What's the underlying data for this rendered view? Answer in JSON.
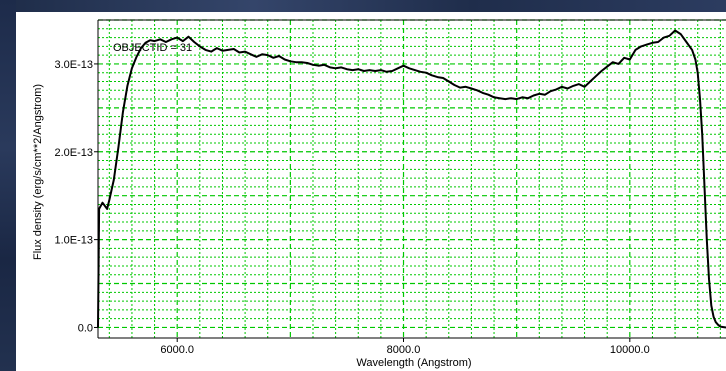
{
  "chart_data": {
    "type": "line",
    "title": "",
    "annotation": "OBJECTID = 31",
    "xlabel": "Wavelength (Angstrom)",
    "ylabel": "Flux density (erg/s/cm**2/Angstrom)",
    "xlim": [
      5300,
      10850
    ],
    "ylim": [
      -1.2e-14,
      3.5e-13
    ],
    "x_ticks": [
      6000,
      8000,
      10000
    ],
    "x_tick_labels": [
      "6000.0",
      "8000.0",
      "10000.0"
    ],
    "y_ticks": [
      0,
      1e-13,
      2e-13,
      3e-13
    ],
    "y_tick_labels": [
      "0.0",
      "1.0E-13",
      "2.0E-13",
      "3.0E-13"
    ],
    "grid": true,
    "grid_color": "#00c800",
    "line_color": "#000000",
    "series": [
      {
        "x": [
          5300,
          5310,
          5340,
          5380,
          5400,
          5440,
          5480,
          5520,
          5560,
          5600,
          5640,
          5680,
          5720,
          5760,
          5800,
          5850,
          5900,
          5950,
          6000,
          6050,
          6100,
          6150,
          6200,
          6250,
          6300,
          6350,
          6400,
          6450,
          6500,
          6550,
          6600,
          6650,
          6700,
          6750,
          6800,
          6850,
          6900,
          6950,
          7000,
          7050,
          7100,
          7150,
          7200,
          7250,
          7300,
          7350,
          7400,
          7450,
          7500,
          7550,
          7600,
          7650,
          7700,
          7750,
          7800,
          7850,
          7900,
          7950,
          8000,
          8050,
          8100,
          8150,
          8200,
          8250,
          8300,
          8350,
          8400,
          8450,
          8500,
          8550,
          8600,
          8650,
          8700,
          8750,
          8800,
          8850,
          8900,
          8950,
          9000,
          9050,
          9100,
          9150,
          9200,
          9250,
          9300,
          9350,
          9400,
          9450,
          9500,
          9550,
          9600,
          9650,
          9700,
          9750,
          9800,
          9850,
          9900,
          9950,
          10000,
          10050,
          10100,
          10150,
          10200,
          10250,
          10300,
          10350,
          10400,
          10450,
          10500,
          10550,
          10580,
          10600,
          10620,
          10640,
          10660,
          10680,
          10700,
          10720,
          10740,
          10760,
          10780,
          10800,
          10850
        ],
        "y": [
          0.0,
          1.35e-13,
          1.42e-13,
          1.35e-13,
          1.45e-13,
          1.68e-13,
          2.05e-13,
          2.45e-13,
          2.75e-13,
          2.95e-13,
          3.08e-13,
          3.18e-13,
          3.24e-13,
          3.27e-13,
          3.26e-13,
          3.28e-13,
          3.25e-13,
          3.28e-13,
          3.3e-13,
          3.26e-13,
          3.31e-13,
          3.25e-13,
          3.2e-13,
          3.16e-13,
          3.14e-13,
          3.18e-13,
          3.15e-13,
          3.16e-13,
          3.17e-13,
          3.13e-13,
          3.14e-13,
          3.11e-13,
          3.08e-13,
          3.11e-13,
          3.1e-13,
          3.07e-13,
          3.09e-13,
          3.05e-13,
          3.03e-13,
          3.02e-13,
          3.02e-13,
          3.01e-13,
          2.99e-13,
          2.98e-13,
          2.99e-13,
          2.96e-13,
          2.95e-13,
          2.96e-13,
          2.94e-13,
          2.93e-13,
          2.94e-13,
          2.92e-13,
          2.93e-13,
          2.92e-13,
          2.93e-13,
          2.91e-13,
          2.92e-13,
          2.95e-13,
          2.98e-13,
          2.95e-13,
          2.93e-13,
          2.91e-13,
          2.9e-13,
          2.87e-13,
          2.85e-13,
          2.84e-13,
          2.8e-13,
          2.76e-13,
          2.73e-13,
          2.74e-13,
          2.72e-13,
          2.7e-13,
          2.67e-13,
          2.65e-13,
          2.62e-13,
          2.61e-13,
          2.6e-13,
          2.61e-13,
          2.6e-13,
          2.62e-13,
          2.61e-13,
          2.64e-13,
          2.66e-13,
          2.65e-13,
          2.69e-13,
          2.71e-13,
          2.74e-13,
          2.72e-13,
          2.75e-13,
          2.77e-13,
          2.74e-13,
          2.8e-13,
          2.86e-13,
          2.92e-13,
          2.97e-13,
          3.02e-13,
          3e-13,
          3.07e-13,
          3.05e-13,
          3.16e-13,
          3.2e-13,
          3.22e-13,
          3.24e-13,
          3.25e-13,
          3.3e-13,
          3.32e-13,
          3.38e-13,
          3.34e-13,
          3.25e-13,
          3.16e-13,
          3.05e-13,
          2.9e-13,
          2.6e-13,
          2.2e-13,
          1.6e-13,
          1e-13,
          5.5e-14,
          2.5e-14,
          1.2e-14,
          6e-15,
          3e-15,
          1e-15,
          0.0
        ]
      }
    ]
  }
}
